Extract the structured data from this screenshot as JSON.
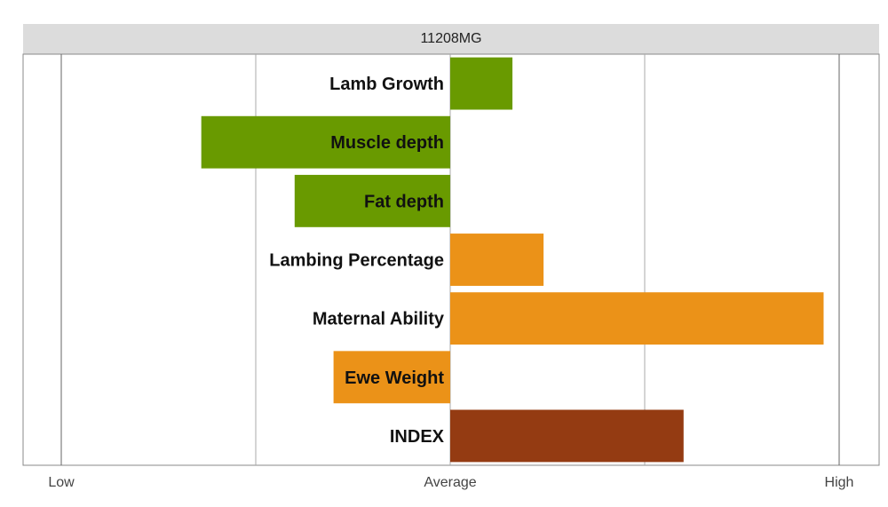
{
  "chart_data": {
    "type": "bar",
    "orientation": "horizontal",
    "title": "11208MG",
    "categories": [
      "Lamb Growth",
      "Muscle depth",
      "Fat depth",
      "Lambing Percentage",
      "Maternal Ability",
      "Ewe Weight",
      "INDEX"
    ],
    "values": [
      0.16,
      -0.64,
      -0.4,
      0.24,
      0.96,
      -0.3,
      0.6
    ],
    "colors": [
      "#699a00",
      "#699a00",
      "#699a00",
      "#eb9218",
      "#eb9218",
      "#eb9218",
      "#943b12"
    ],
    "xlim": [
      -1,
      1
    ],
    "tick_values": [
      -1,
      -0.5,
      0,
      0.5,
      1
    ],
    "x_tick_labels": [
      "Low",
      "",
      "Average",
      "",
      "High"
    ],
    "grid": true
  }
}
